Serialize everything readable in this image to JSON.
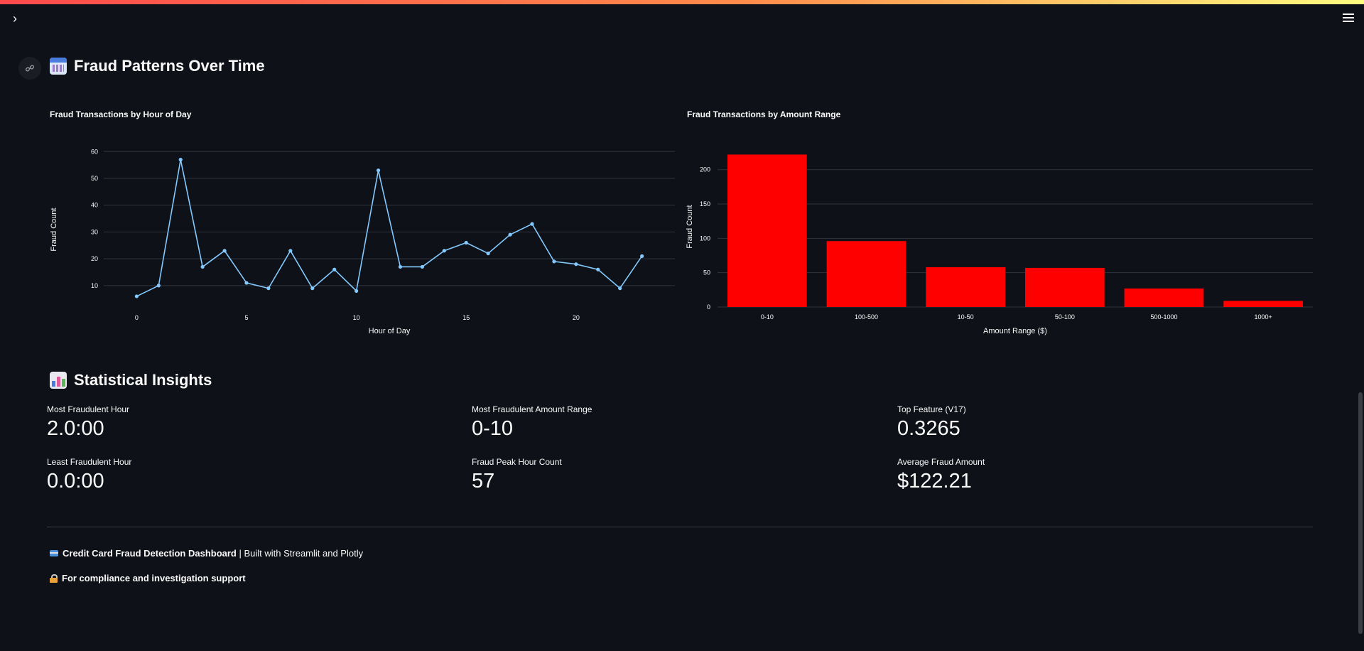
{
  "header": {
    "sidebar_toggle_icon": "chevron-right-icon",
    "menu_icon": "hamburger-menu-icon"
  },
  "patterns_section": {
    "title": "Fraud Patterns Over Time",
    "icon": "calendar-icon"
  },
  "charts": {
    "hour_chart_title": "Fraud Transactions by Hour of Day",
    "amount_chart_title": "Fraud Transactions by Amount Range"
  },
  "chart_data": [
    {
      "type": "line",
      "title": "Fraud Transactions by Hour of Day",
      "xlabel": "Hour of Day",
      "ylabel": "Fraud Count",
      "x": [
        0,
        1,
        2,
        3,
        4,
        5,
        6,
        7,
        8,
        9,
        10,
        11,
        12,
        13,
        14,
        15,
        16,
        17,
        18,
        19,
        20,
        21,
        22,
        23
      ],
      "y": [
        6,
        10,
        57,
        17,
        23,
        11,
        9,
        23,
        9,
        16,
        8,
        53,
        17,
        17,
        23,
        26,
        22,
        29,
        33,
        19,
        18,
        16,
        9,
        21
      ],
      "xticks": [
        0,
        5,
        10,
        15,
        20
      ],
      "yticks": [
        10,
        20,
        30,
        40,
        50,
        60
      ],
      "xlim": [
        -1.5,
        24.5
      ],
      "ylim": [
        2,
        63
      ],
      "grid": true,
      "color": "#83c9ff"
    },
    {
      "type": "bar",
      "title": "Fraud Transactions by Amount Range",
      "xlabel": "Amount Range ($)",
      "ylabel": "Fraud Count",
      "categories": [
        "0-10",
        "100-500",
        "10-50",
        "50-100",
        "500-1000",
        "1000+"
      ],
      "values": [
        222,
        96,
        58,
        57,
        27,
        9
      ],
      "yticks": [
        0,
        50,
        100,
        150,
        200
      ],
      "ylim": [
        0,
        238
      ],
      "grid": true,
      "color": "#ff0000"
    }
  ],
  "insights_section": {
    "title": "Statistical Insights",
    "icon": "bar-chart-icon"
  },
  "metrics": [
    {
      "label": "Most Fraudulent Hour",
      "value": "2.0:00"
    },
    {
      "label": "Most Fraudulent Amount Range",
      "value": "0-10"
    },
    {
      "label": "Top Feature (V17)",
      "value": "0.3265"
    },
    {
      "label": "Least Fraudulent Hour",
      "value": "0.0:00"
    },
    {
      "label": "Fraud Peak Hour Count",
      "value": "57"
    },
    {
      "label": "Average Fraud Amount",
      "value": "$122.21"
    }
  ],
  "footer": {
    "line1_bold": "Credit Card Fraud Detection Dashboard",
    "line1_rest": " | Built with Streamlit and Plotly",
    "line2": "For compliance and investigation support"
  },
  "colors": {
    "background": "#0e1117",
    "line_series": "#83c9ff",
    "bar_series": "#ff0000",
    "grid": "#31333f"
  }
}
